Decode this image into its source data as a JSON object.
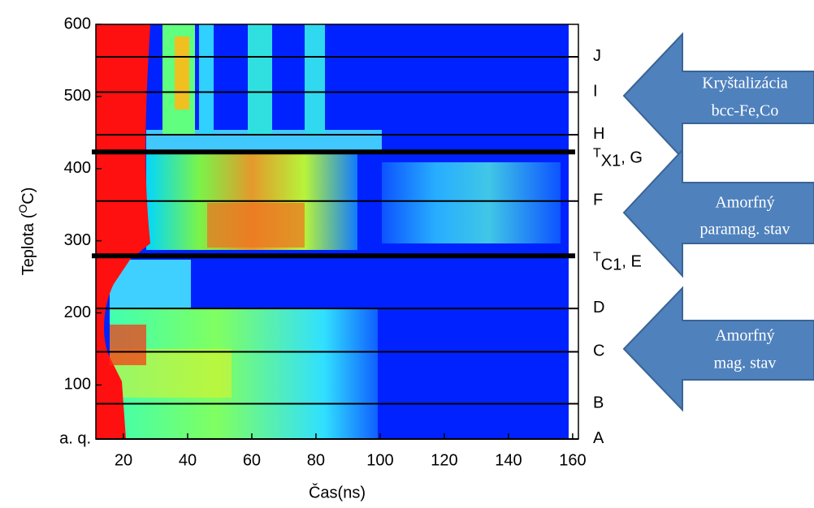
{
  "chart_data": {
    "type": "heatmap",
    "x_label": "Čas(ns)",
    "y_label": {
      "text": "Teplota (",
      "sup": "O",
      "suffix": "C)"
    },
    "xlim": [
      11.4,
      161.8
    ],
    "xticks": [
      20,
      40,
      60,
      80,
      100,
      120,
      140,
      160
    ],
    "ylim": [
      25,
      600
    ],
    "yticks": [
      {
        "value": 25,
        "label": "a. q."
      },
      100,
      200,
      300,
      400,
      500,
      600
    ],
    "levels": [
      {
        "label": "A",
        "value": 25,
        "thick": false
      },
      {
        "label": "B",
        "value": 74,
        "thick": false
      },
      {
        "label": "C",
        "value": 146,
        "thick": false
      },
      {
        "label": "D",
        "value": 206,
        "thick": false
      },
      {
        "label": "T",
        "sub": "C1",
        "suffix": ", E",
        "value": 279,
        "thick": true
      },
      {
        "label": "F",
        "value": 355,
        "thick": false
      },
      {
        "label": "T",
        "sub": "X1",
        "suffix": ", G",
        "value": 423,
        "thick": true
      },
      {
        "label": "H",
        "value": 447,
        "thick": false
      },
      {
        "label": "I",
        "value": 506,
        "thick": false
      },
      {
        "label": "J",
        "value": 555,
        "thick": false
      }
    ],
    "annotations": [
      {
        "lines": [
          "Kryštalizácia",
          "bcc-Fe,Co"
        ]
      },
      {
        "lines": [
          "Amorfný",
          "paramag. stav"
        ]
      },
      {
        "lines": [
          "Amorfný",
          "mag. stav"
        ]
      }
    ]
  }
}
